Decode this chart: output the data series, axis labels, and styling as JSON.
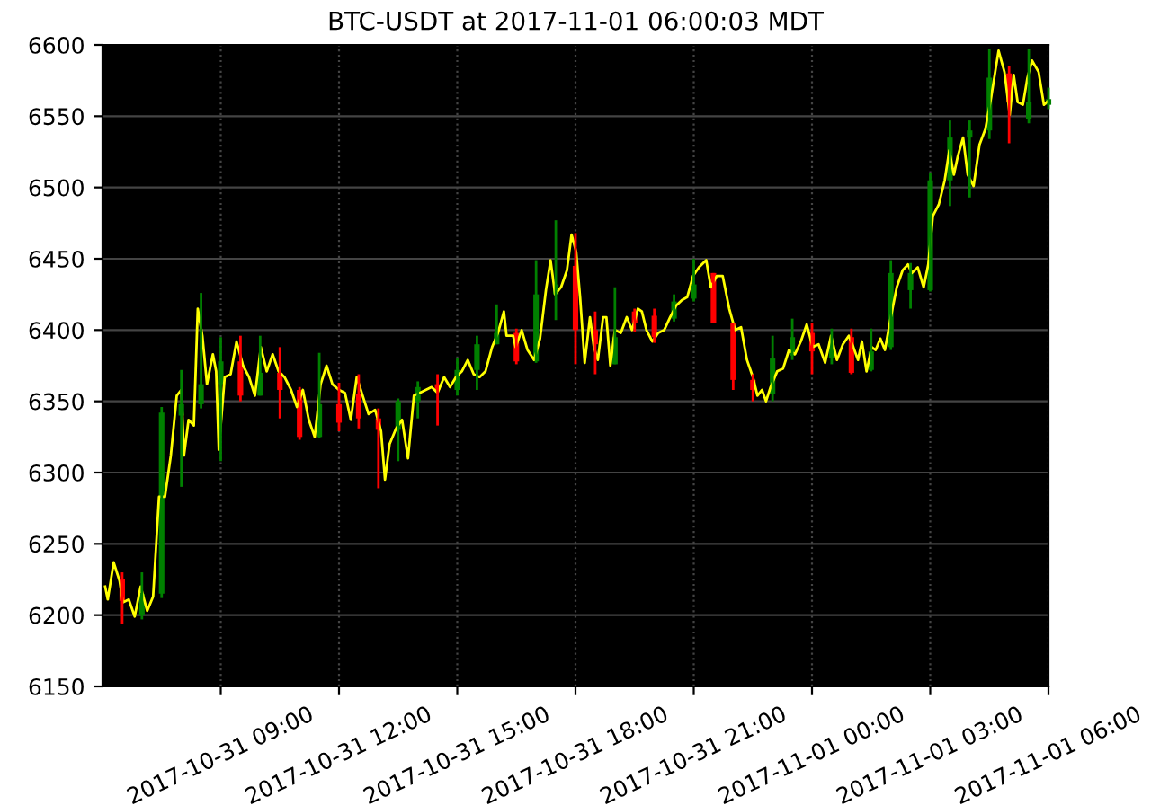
{
  "chart_data": {
    "type": "candlestick",
    "title": "BTC-USDT at 2017-11-01 06:00:03 MDT",
    "xlim": [
      "2017-10-31T06:00",
      "2017-11-01T06:00"
    ],
    "xticks": [
      {
        "value": "2017-10-31T09:00",
        "label": "2017-10-31 09:00"
      },
      {
        "value": "2017-10-31T12:00",
        "label": "2017-10-31 12:00"
      },
      {
        "value": "2017-10-31T15:00",
        "label": "2017-10-31 15:00"
      },
      {
        "value": "2017-10-31T18:00",
        "label": "2017-10-31 18:00"
      },
      {
        "value": "2017-10-31T21:00",
        "label": "2017-10-31 21:00"
      },
      {
        "value": "2017-11-01T00:00",
        "label": "2017-11-01 00:00"
      },
      {
        "value": "2017-11-01T03:00",
        "label": "2017-11-01 03:00"
      },
      {
        "value": "2017-11-01T06:00",
        "label": "2017-11-01 06:00"
      }
    ],
    "ylim": [
      6150,
      6600
    ],
    "yticks": [
      6150,
      6200,
      6250,
      6300,
      6350,
      6400,
      6450,
      6500,
      6550,
      6600
    ],
    "grid": true,
    "series": [
      {
        "type": "line",
        "color": "#ffff00",
        "x": [
          "2017-10-31T06:04",
          "2017-10-31T06:08",
          "2017-10-31T06:17",
          "2017-10-31T06:26",
          "2017-10-31T06:31",
          "2017-10-31T06:40",
          "2017-10-31T06:49",
          "2017-10-31T06:58",
          "2017-10-31T07:08",
          "2017-10-31T07:17",
          "2017-10-31T07:26",
          "2017-10-31T07:35",
          "2017-10-31T07:44",
          "2017-10-31T07:53",
          "2017-10-31T08:00",
          "2017-10-31T08:04",
          "2017-10-31T08:11",
          "2017-10-31T08:19",
          "2017-10-31T08:25",
          "2017-10-31T08:32",
          "2017-10-31T08:39",
          "2017-10-31T08:48",
          "2017-10-31T08:53",
          "2017-10-31T08:57",
          "2017-10-31T09:06",
          "2017-10-31T09:15",
          "2017-10-31T09:24",
          "2017-10-31T09:34",
          "2017-10-31T09:43",
          "2017-10-31T09:52",
          "2017-10-31T10:01",
          "2017-10-31T10:10",
          "2017-10-31T10:19",
          "2017-10-31T10:28",
          "2017-10-31T10:37",
          "2017-10-31T10:47",
          "2017-10-31T10:56",
          "2017-10-31T11:05",
          "2017-10-31T11:14",
          "2017-10-31T11:23",
          "2017-10-31T11:32",
          "2017-10-31T11:41",
          "2017-10-31T11:50",
          "2017-10-31T12:00",
          "2017-10-31T12:09",
          "2017-10-31T12:18",
          "2017-10-31T12:27",
          "2017-10-31T12:36",
          "2017-10-31T12:45",
          "2017-10-31T12:55",
          "2017-10-31T13:04",
          "2017-10-31T13:10",
          "2017-10-31T13:17",
          "2017-10-31T13:27",
          "2017-10-31T13:36",
          "2017-10-31T13:45",
          "2017-10-31T13:54",
          "2017-10-31T14:03",
          "2017-10-31T14:12",
          "2017-10-31T14:21",
          "2017-10-31T14:30",
          "2017-10-31T14:40",
          "2017-10-31T14:49",
          "2017-10-31T14:58",
          "2017-10-31T15:07",
          "2017-10-31T15:16",
          "2017-10-31T15:25",
          "2017-10-31T15:34",
          "2017-10-31T15:43",
          "2017-10-31T15:53",
          "2017-10-31T16:02",
          "2017-10-31T16:11",
          "2017-10-31T16:15",
          "2017-10-31T16:25",
          "2017-10-31T16:29",
          "2017-10-31T16:38",
          "2017-10-31T16:47",
          "2017-10-31T16:57",
          "2017-10-31T17:06",
          "2017-10-31T17:15",
          "2017-10-31T17:22",
          "2017-10-31T17:29",
          "2017-10-31T17:38",
          "2017-10-31T17:47",
          "2017-10-31T17:54",
          "2017-10-31T18:01",
          "2017-10-31T18:07",
          "2017-10-31T18:14",
          "2017-10-31T18:22",
          "2017-10-31T18:28",
          "2017-10-31T18:34",
          "2017-10-31T18:42",
          "2017-10-31T18:47",
          "2017-10-31T18:53",
          "2017-10-31T19:00",
          "2017-10-31T19:09",
          "2017-10-31T19:18",
          "2017-10-31T19:26",
          "2017-10-31T19:35",
          "2017-10-31T19:41",
          "2017-10-31T19:48",
          "2017-10-31T19:57",
          "2017-10-31T20:06",
          "2017-10-31T20:15",
          "2017-10-31T20:24",
          "2017-10-31T20:33",
          "2017-10-31T20:42",
          "2017-10-31T20:50",
          "2017-10-31T20:59",
          "2017-10-31T21:08",
          "2017-10-31T21:19",
          "2017-10-31T21:26",
          "2017-10-31T21:35",
          "2017-10-31T21:44",
          "2017-10-31T21:54",
          "2017-10-31T22:03",
          "2017-10-31T22:12",
          "2017-10-31T22:21",
          "2017-10-31T22:30",
          "2017-10-31T22:37",
          "2017-10-31T22:44",
          "2017-10-31T22:50",
          "2017-10-31T22:57",
          "2017-10-31T23:07",
          "2017-10-31T23:16",
          "2017-10-31T23:25",
          "2017-10-31T23:34",
          "2017-10-31T23:43",
          "2017-10-31T23:52",
          "2017-11-01T00:01",
          "2017-11-01T00:10",
          "2017-11-01T00:20",
          "2017-11-01T00:29",
          "2017-11-01T00:38",
          "2017-11-01T00:47",
          "2017-11-01T00:56",
          "2017-11-01T01:03",
          "2017-11-01T01:10",
          "2017-11-01T01:16",
          "2017-11-01T01:23",
          "2017-11-01T01:31",
          "2017-11-01T01:37",
          "2017-11-01T01:44",
          "2017-11-01T01:51",
          "2017-11-01T02:00",
          "2017-11-01T02:09",
          "2017-11-01T02:18",
          "2017-11-01T02:26",
          "2017-11-01T02:32",
          "2017-11-01T02:41",
          "2017-11-01T02:50",
          "2017-11-01T02:57",
          "2017-11-01T03:04",
          "2017-11-01T03:13",
          "2017-11-01T03:22",
          "2017-11-01T03:29",
          "2017-11-01T03:36",
          "2017-11-01T03:42",
          "2017-11-01T03:50",
          "2017-11-01T03:57",
          "2017-11-01T04:06",
          "2017-11-01T04:15",
          "2017-11-01T04:24",
          "2017-11-01T04:33",
          "2017-11-01T04:44",
          "2017-11-01T04:53",
          "2017-11-01T05:01",
          "2017-11-01T05:07",
          "2017-11-01T05:13",
          "2017-11-01T05:21",
          "2017-11-01T05:28",
          "2017-11-01T05:35",
          "2017-11-01T05:45",
          "2017-11-01T05:53",
          "2017-11-01T06:00"
        ],
        "values": [
          6220,
          6211,
          6237,
          6224,
          6209,
          6211,
          6199,
          6220,
          6203,
          6213,
          6283,
          6283,
          6312,
          6354,
          6358,
          6312,
          6337,
          6333,
          6415,
          6396,
          6362,
          6383,
          6371,
          6316,
          6367,
          6369,
          6392,
          6375,
          6367,
          6354,
          6388,
          6371,
          6383,
          6371,
          6367,
          6358,
          6346,
          6358,
          6337,
          6325,
          6362,
          6375,
          6362,
          6358,
          6356,
          6337,
          6367,
          6354,
          6341,
          6344,
          6329,
          6295,
          6320,
          6331,
          6337,
          6310,
          6354,
          6356,
          6358,
          6360,
          6356,
          6367,
          6360,
          6367,
          6371,
          6379,
          6369,
          6367,
          6371,
          6388,
          6398,
          6413,
          6396,
          6396,
          6388,
          6400,
          6386,
          6379,
          6394,
          6428,
          6449,
          6425,
          6430,
          6442,
          6467,
          6455,
          6423,
          6377,
          6409,
          6388,
          6379,
          6409,
          6409,
          6375,
          6400,
          6398,
          6409,
          6400,
          6415,
          6413,
          6400,
          6392,
          6398,
          6400,
          6409,
          6417,
          6421,
          6423,
          6438,
          6444,
          6449,
          6430,
          6438,
          6438,
          6415,
          6400,
          6402,
          6379,
          6367,
          6354,
          6358,
          6350,
          6360,
          6371,
          6373,
          6386,
          6383,
          6392,
          6404,
          6388,
          6390,
          6377,
          6396,
          6379,
          6390,
          6396,
          6388,
          6379,
          6392,
          6371,
          6388,
          6386,
          6394,
          6386,
          6409,
          6430,
          6442,
          6446,
          6440,
          6444,
          6430,
          6446,
          6480,
          6488,
          6505,
          6526,
          6509,
          6522,
          6535,
          6509,
          6501,
          6530,
          6541,
          6564,
          6596,
          6581,
          6551,
          6579,
          6560,
          6558,
          6577,
          6589,
          6581,
          6558,
          6561
        ]
      },
      {
        "x": [
          "2017-10-31T06:30",
          "2017-10-31T07:00",
          "2017-10-31T07:30",
          "2017-10-31T08:00",
          "2017-10-31T08:30",
          "2017-10-31T09:00",
          "2017-10-31T09:30",
          "2017-10-31T10:00",
          "2017-10-31T10:30",
          "2017-10-31T11:00",
          "2017-10-31T11:30",
          "2017-10-31T12:00",
          "2017-10-31T12:30",
          "2017-10-31T13:00",
          "2017-10-31T13:30",
          "2017-10-31T14:00",
          "2017-10-31T14:30",
          "2017-10-31T15:00",
          "2017-10-31T15:30",
          "2017-10-31T16:00",
          "2017-10-31T16:30",
          "2017-10-31T17:00",
          "2017-10-31T17:30",
          "2017-10-31T18:00",
          "2017-10-31T18:30",
          "2017-10-31T19:00",
          "2017-10-31T19:30",
          "2017-10-31T20:00",
          "2017-10-31T20:30",
          "2017-10-31T21:00",
          "2017-10-31T21:30",
          "2017-10-31T22:00",
          "2017-10-31T22:30",
          "2017-10-31T23:00",
          "2017-10-31T23:30",
          "2017-11-01T00:00",
          "2017-11-01T00:30",
          "2017-11-01T01:00",
          "2017-11-01T01:30",
          "2017-11-01T02:00",
          "2017-11-01T02:30",
          "2017-11-01T03:00",
          "2017-11-01T03:30",
          "2017-11-01T04:00",
          "2017-11-01T04:30",
          "2017-11-01T05:00",
          "2017-11-01T05:30",
          "2017-11-01T06:00"
        ],
        "ohlc": [
          [
            6225,
            6230,
            6194,
            6210
          ],
          [
            6200,
            6230,
            6197,
            6215
          ],
          [
            6215,
            6346,
            6212,
            6342
          ],
          [
            6340,
            6372,
            6290,
            6348
          ],
          [
            6348,
            6426,
            6345,
            6362
          ],
          [
            6362,
            6395,
            6308,
            6378
          ],
          [
            6378,
            6396,
            6350,
            6354
          ],
          [
            6354,
            6396,
            6354,
            6370
          ],
          [
            6370,
            6388,
            6338,
            6358
          ],
          [
            6358,
            6360,
            6323,
            6325
          ],
          [
            6325,
            6384,
            6324,
            6348
          ],
          [
            6348,
            6363,
            6329,
            6335
          ],
          [
            6355,
            6369,
            6331,
            6338
          ],
          [
            6338,
            6345,
            6289,
            6330
          ],
          [
            6330,
            6352,
            6308,
            6350
          ],
          [
            6350,
            6364,
            6338,
            6360
          ],
          [
            6362,
            6369,
            6333,
            6358
          ],
          [
            6358,
            6380,
            6354,
            6372
          ],
          [
            6372,
            6396,
            6358,
            6390
          ],
          [
            6390,
            6418,
            6390,
            6398
          ],
          [
            6398,
            6401,
            6376,
            6378
          ],
          [
            6378,
            6449,
            6377,
            6425
          ],
          [
            6425,
            6477,
            6407,
            6432
          ],
          [
            6445,
            6468,
            6376,
            6400
          ],
          [
            6400,
            6413,
            6369,
            6390
          ],
          [
            6376,
            6430,
            6376,
            6395
          ],
          [
            6413,
            6415,
            6399,
            6405
          ],
          [
            6410,
            6415,
            6391,
            6395
          ],
          [
            6408,
            6425,
            6406,
            6420
          ],
          [
            6422,
            6450,
            6420,
            6432
          ],
          [
            6440,
            6440,
            6405,
            6405
          ],
          [
            6405,
            6405,
            6358,
            6365
          ],
          [
            6365,
            6369,
            6350,
            6358
          ],
          [
            6355,
            6396,
            6350,
            6380
          ],
          [
            6382,
            6408,
            6379,
            6395
          ],
          [
            6398,
            6405,
            6369,
            6385
          ],
          [
            6380,
            6401,
            6376,
            6392
          ],
          [
            6395,
            6401,
            6369,
            6370
          ],
          [
            6372,
            6401,
            6371,
            6385
          ],
          [
            6388,
            6449,
            6386,
            6440
          ],
          [
            6428,
            6447,
            6415,
            6440
          ],
          [
            6428,
            6510,
            6427,
            6505
          ],
          [
            6505,
            6547,
            6487,
            6535
          ],
          [
            6535,
            6547,
            6493,
            6540
          ],
          [
            6540,
            6597,
            6534,
            6577
          ],
          [
            6580,
            6585,
            6531,
            6560
          ],
          [
            6548,
            6597,
            6545,
            6560
          ],
          [
            6558,
            6570,
            6555,
            6562
          ]
        ],
        "colors": [
          "#ff0000",
          "#008000",
          "#008000",
          "#008000",
          "#008000",
          "#008000",
          "#ff0000",
          "#008000",
          "#ff0000",
          "#ff0000",
          "#008000",
          "#ff0000",
          "#ff0000",
          "#ff0000",
          "#008000",
          "#008000",
          "#ff0000",
          "#008000",
          "#008000",
          "#008000",
          "#ff0000",
          "#008000",
          "#008000",
          "#ff0000",
          "#ff0000",
          "#008000",
          "#ff0000",
          "#ff0000",
          "#008000",
          "#008000",
          "#ff0000",
          "#ff0000",
          "#ff0000",
          "#008000",
          "#008000",
          "#ff0000",
          "#008000",
          "#ff0000",
          "#008000",
          "#008000",
          "#008000",
          "#008000",
          "#008000",
          "#008000",
          "#008000",
          "#ff0000",
          "#008000",
          "#008000"
        ]
      }
    ]
  }
}
